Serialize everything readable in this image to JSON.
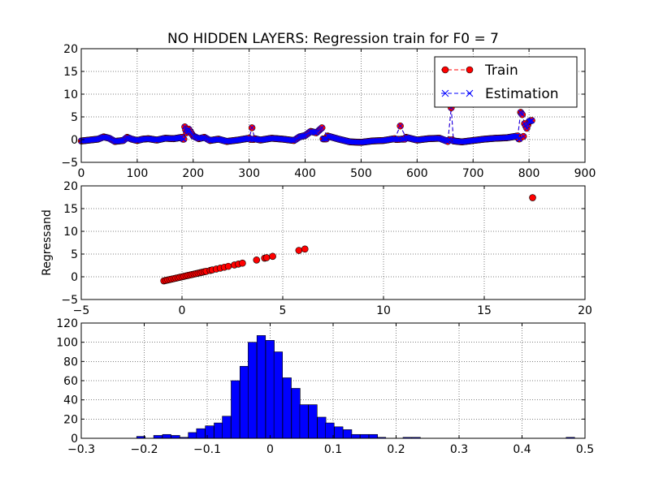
{
  "title": "NO HIDDEN LAYERS: Regression train for F0 = 7",
  "chart_data": [
    {
      "type": "line",
      "title": "NO HIDDEN LAYERS: Regression train for F0 = 7",
      "xlim": [
        0,
        900
      ],
      "ylim": [
        -5,
        20
      ],
      "xticks": [
        0,
        100,
        200,
        300,
        400,
        500,
        600,
        700,
        800,
        900
      ],
      "yticks": [
        -5,
        0,
        5,
        10,
        15,
        20
      ],
      "grid": true,
      "legend": {
        "position": "top-right",
        "entries": [
          "Train",
          "Estimation"
        ]
      },
      "series": [
        {
          "name": "Train",
          "style": "red circles with dashed line",
          "color": "#ff0000",
          "x": [
            0,
            15,
            30,
            40,
            50,
            60,
            75,
            82,
            90,
            100,
            110,
            120,
            135,
            150,
            165,
            180,
            185,
            188,
            192,
            200,
            210,
            220,
            230,
            245,
            260,
            280,
            295,
            300,
            305,
            310,
            320,
            340,
            360,
            380,
            390,
            400,
            410,
            420,
            430,
            440,
            460,
            480,
            500,
            520,
            540,
            560,
            570,
            580,
            600,
            620,
            640,
            655,
            661,
            665,
            680,
            700,
            720,
            740,
            760,
            780,
            785,
            788,
            792,
            796,
            800,
            805
          ],
          "y": [
            -0.3,
            -0.1,
            0.1,
            0.6,
            0.3,
            -0.4,
            -0.2,
            0.5,
            0.1,
            -0.2,
            0.1,
            0.2,
            -0.1,
            0.3,
            0.2,
            0.5,
            2.8,
            1.5,
            2.3,
            0.8,
            0.2,
            0.5,
            -0.2,
            0.1,
            -0.4,
            -0.1,
            0.2,
            0.3,
            2.6,
            0.2,
            -0.1,
            0.3,
            0.1,
            -0.2,
            0.6,
            0.9,
            1.8,
            1.5,
            2.6,
            0.8,
            0.1,
            -0.5,
            -0.6,
            -0.3,
            -0.2,
            0.2,
            3.0,
            0.5,
            -0.1,
            0.2,
            0.3,
            -0.4,
            7.0,
            -0.3,
            -0.5,
            -0.2,
            0.1,
            0.3,
            0.4,
            0.8,
            6.0,
            5.5,
            3.5,
            2.5,
            4.0,
            4.2
          ]
        },
        {
          "name": "Estimation",
          "style": "blue x markers with dashed line",
          "color": "#0000ff",
          "x": [
            0,
            15,
            30,
            40,
            50,
            60,
            75,
            82,
            90,
            100,
            110,
            120,
            135,
            150,
            165,
            180,
            185,
            188,
            192,
            200,
            210,
            220,
            230,
            245,
            260,
            280,
            295,
            300,
            305,
            310,
            320,
            340,
            360,
            380,
            390,
            400,
            410,
            420,
            430,
            440,
            460,
            480,
            500,
            520,
            540,
            560,
            570,
            580,
            600,
            620,
            640,
            655,
            661,
            665,
            680,
            700,
            720,
            740,
            760,
            780,
            785,
            788,
            792,
            796,
            800,
            805
          ],
          "y": [
            -0.3,
            -0.1,
            0.1,
            0.6,
            0.3,
            -0.4,
            -0.2,
            0.5,
            0.1,
            -0.2,
            0.1,
            0.2,
            -0.1,
            0.3,
            0.2,
            0.5,
            2.8,
            1.5,
            2.3,
            0.8,
            0.2,
            0.5,
            -0.2,
            0.1,
            -0.4,
            -0.1,
            0.2,
            0.3,
            2.6,
            0.2,
            -0.1,
            0.3,
            0.1,
            -0.2,
            0.6,
            0.9,
            1.8,
            1.5,
            2.6,
            0.8,
            0.1,
            -0.5,
            -0.6,
            -0.3,
            -0.2,
            0.2,
            3.0,
            0.5,
            -0.1,
            0.2,
            0.3,
            -0.4,
            7.0,
            -0.3,
            -0.5,
            -0.2,
            0.1,
            0.3,
            0.4,
            0.8,
            6.0,
            5.5,
            3.5,
            2.5,
            4.0,
            4.2
          ]
        }
      ]
    },
    {
      "type": "scatter",
      "ylabel": "Regressand",
      "xlim": [
        -5,
        20
      ],
      "ylim": [
        -5,
        20
      ],
      "xticks": [
        -5,
        0,
        5,
        10,
        15,
        20
      ],
      "yticks": [
        -5,
        0,
        5,
        10,
        15,
        20
      ],
      "grid": true,
      "color": "#ff0000",
      "x": [
        -0.9,
        -0.8,
        -0.7,
        -0.6,
        -0.5,
        -0.4,
        -0.3,
        -0.2,
        -0.1,
        0.0,
        0.1,
        0.2,
        0.3,
        0.4,
        0.5,
        0.6,
        0.7,
        0.8,
        0.9,
        1.0,
        1.1,
        1.2,
        1.4,
        1.5,
        1.7,
        1.9,
        2.1,
        2.3,
        2.6,
        2.8,
        3.0,
        3.7,
        4.1,
        4.2,
        4.5,
        5.8,
        6.1,
        17.4
      ],
      "y": [
        -0.9,
        -0.8,
        -0.7,
        -0.6,
        -0.5,
        -0.4,
        -0.3,
        -0.2,
        -0.1,
        0.0,
        0.1,
        0.2,
        0.3,
        0.4,
        0.5,
        0.6,
        0.7,
        0.8,
        0.9,
        1.0,
        1.1,
        1.2,
        1.4,
        1.5,
        1.7,
        1.9,
        2.1,
        2.3,
        2.6,
        2.8,
        3.0,
        3.7,
        4.1,
        4.2,
        4.5,
        5.8,
        6.1,
        17.4
      ]
    },
    {
      "type": "bar",
      "subtype": "histogram",
      "xlim": [
        -0.3,
        0.5
      ],
      "ylim": [
        0,
        120
      ],
      "xticks": [
        -0.3,
        -0.2,
        -0.1,
        0.0,
        0.1,
        0.2,
        0.3,
        0.4,
        0.5
      ],
      "yticks": [
        0,
        20,
        40,
        60,
        80,
        100,
        120
      ],
      "grid": true,
      "color": "#0000ff",
      "bin_width": 0.0136,
      "bin_starts": [
        -0.212,
        -0.198,
        -0.185,
        -0.171,
        -0.157,
        -0.144,
        -0.13,
        -0.117,
        -0.103,
        -0.089,
        -0.076,
        -0.062,
        -0.048,
        -0.035,
        -0.021,
        -0.007,
        0.006,
        0.02,
        0.034,
        0.047,
        0.061,
        0.075,
        0.088,
        0.102,
        0.116,
        0.129,
        0.143,
        0.157,
        0.17,
        0.184,
        0.197,
        0.211,
        0.225,
        0.238,
        0.252,
        0.266,
        0.279,
        0.293,
        0.307,
        0.32,
        0.334,
        0.348,
        0.361,
        0.375,
        0.389,
        0.402,
        0.416,
        0.429,
        0.443,
        0.457,
        0.47
      ],
      "counts": [
        2,
        0,
        3,
        4,
        3,
        1,
        6,
        10,
        13,
        16,
        23,
        60,
        75,
        100,
        107,
        102,
        90,
        63,
        52,
        35,
        35,
        22,
        16,
        12,
        9,
        4,
        4,
        4,
        1,
        0,
        0,
        1,
        1,
        0,
        0,
        0,
        0,
        0,
        0,
        0,
        0,
        0,
        0,
        0,
        0,
        0,
        0,
        0,
        0,
        0,
        1
      ]
    }
  ]
}
